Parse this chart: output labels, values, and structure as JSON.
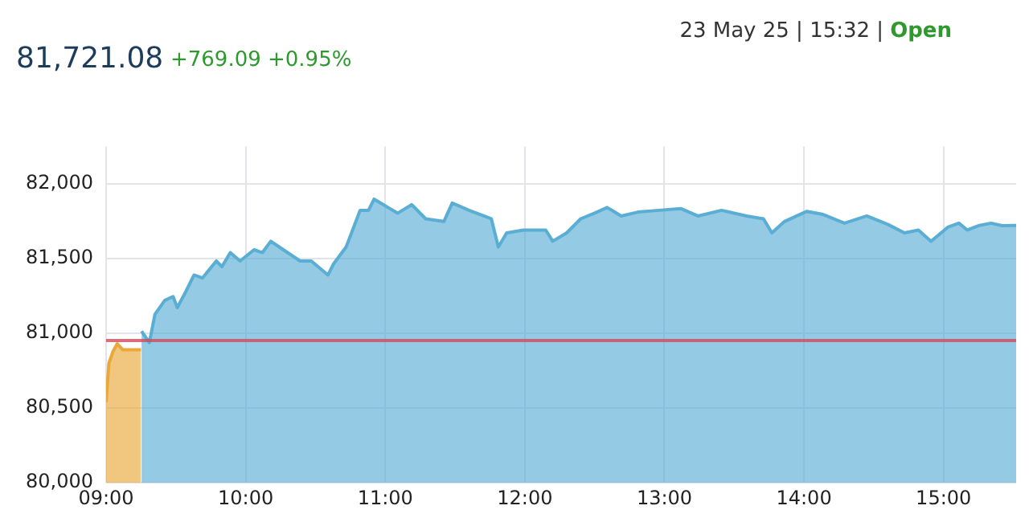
{
  "chart_data": {
    "type": "area",
    "title": "81,721.08",
    "subtitle": "+769.09 +0.95%",
    "annotations": [
      "23 May 25 | 15:32 |",
      "Open"
    ],
    "xlim": [
      9,
      15.52
    ],
    "xticks": [
      {
        "value": 9,
        "label": "09:00"
      },
      {
        "value": 10,
        "label": "10:00"
      },
      {
        "value": 11,
        "label": "11:00"
      },
      {
        "value": 12,
        "label": "12:00"
      },
      {
        "value": 13,
        "label": "13:00"
      },
      {
        "value": 14,
        "label": "14:00"
      },
      {
        "value": 15,
        "label": "15:00"
      }
    ],
    "ylim": [
      80000,
      82250
    ],
    "yticks": [
      {
        "value": 80000,
        "label": "80,000"
      },
      {
        "value": 80500,
        "label": "80,500"
      },
      {
        "value": 81000,
        "label": "81,000"
      },
      {
        "value": 81500,
        "label": "81,500"
      },
      {
        "value": 82000,
        "label": "82,000"
      }
    ],
    "grid": true,
    "legend": false,
    "marker": "none",
    "ref_lines": [
      {
        "axis": "y",
        "value": 80952,
        "color": "#d04a5a"
      }
    ],
    "series": [
      {
        "color": "#eaa73a",
        "x": [
          9,
          9.02,
          9.05,
          9.08,
          9.12,
          9.18,
          9.25
        ],
        "values": [
          80540,
          80800,
          80880,
          80930,
          80890,
          80890,
          80890
        ]
      },
      {
        "color": "#5aaed4",
        "x": [
          9.254,
          9.31,
          9.35,
          9.42,
          9.48,
          9.51,
          9.57,
          9.63,
          9.69,
          9.79,
          9.83,
          9.89,
          9.96,
          10.06,
          10.12,
          10.18,
          10.27,
          10.39,
          10.47,
          10.59,
          10.63,
          10.72,
          10.82,
          10.88,
          10.92,
          11.02,
          11.09,
          11.19,
          11.29,
          11.42,
          11.48,
          11.6,
          11.76,
          11.81,
          11.87,
          11.99,
          12.15,
          12.2,
          12.3,
          12.4,
          12.5,
          12.59,
          12.69,
          12.81,
          12.96,
          13.12,
          13.24,
          13.41,
          13.59,
          13.71,
          13.77,
          13.86,
          14.02,
          14.13,
          14.29,
          14.45,
          14.6,
          14.72,
          14.82,
          14.91,
          15.03,
          15.11,
          15.17,
          15.25,
          15.34,
          15.42,
          15.52
        ],
        "values": [
          81014,
          80938,
          81127,
          81220,
          81246,
          81172,
          81277,
          81390,
          81370,
          81484,
          81446,
          81540,
          81484,
          81559,
          81540,
          81616,
          81559,
          81484,
          81484,
          81390,
          81465,
          81578,
          81823,
          81823,
          81898,
          81842,
          81804,
          81861,
          81766,
          81748,
          81872,
          81823,
          81766,
          81578,
          81672,
          81691,
          81691,
          81616,
          81672,
          81766,
          81804,
          81842,
          81785,
          81811,
          81823,
          81834,
          81785,
          81823,
          81785,
          81766,
          81672,
          81748,
          81816,
          81797,
          81737,
          81785,
          81729,
          81672,
          81691,
          81616,
          81710,
          81737,
          81691,
          81720,
          81737,
          81720,
          81721
        ]
      }
    ]
  }
}
